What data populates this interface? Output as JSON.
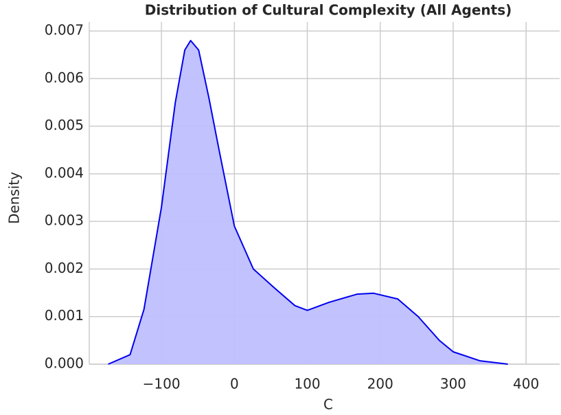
{
  "chart_data": {
    "type": "area",
    "title": "Distribution of Cultural Complexity (All Agents)",
    "x_label": "C",
    "y_label": "Density",
    "x": [
      -173,
      -143,
      -124,
      -100,
      -81,
      -68,
      -60,
      -49,
      -35,
      -21,
      0,
      26,
      55,
      83,
      100,
      130,
      168,
      191,
      224,
      252,
      281,
      300,
      337,
      375
    ],
    "values": [
      0,
      0.0002,
      0.00115,
      0.0033,
      0.0055,
      0.0066,
      0.0068,
      0.0066,
      0.0056,
      0.0045,
      0.0029,
      0.002,
      0.0016,
      0.00123,
      0.00113,
      0.0013,
      0.00147,
      0.00149,
      0.00137,
      0.001,
      0.0005,
      0.00026,
      7e-05,
      0
    ],
    "color": "#0000ee",
    "fill": "#bfbfff",
    "xlim": [
      -199,
      446
    ],
    "ylim": [
      0,
      0.00719
    ],
    "xticks": [
      {
        "value": -100,
        "label": "−100"
      },
      0,
      100,
      200,
      300,
      400
    ],
    "yticks": [
      {
        "value": 0,
        "label": "0.000"
      },
      {
        "value": 0.001,
        "label": "0.001"
      },
      {
        "value": 0.002,
        "label": "0.002"
      },
      {
        "value": 0.003,
        "label": "0.003"
      },
      {
        "value": 0.004,
        "label": "0.004"
      },
      {
        "value": 0.005,
        "label": "0.005"
      },
      {
        "value": 0.006,
        "label": "0.006"
      },
      {
        "value": 0.007,
        "label": "0.007"
      }
    ],
    "grid": true
  }
}
